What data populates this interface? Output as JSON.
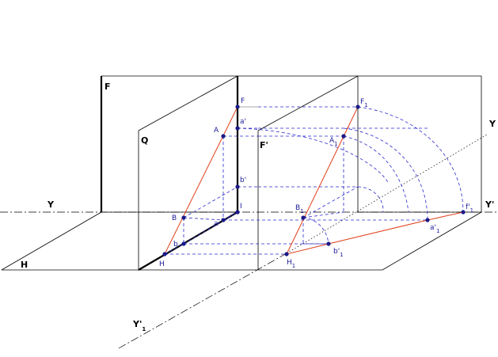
{
  "labels": {
    "F": "F",
    "Q": "Q",
    "Fp": "F'",
    "Y": "Y",
    "Yp": "Y'",
    "Y1": "Y",
    "Y1p": "Y'",
    "Y1p_sub": "1",
    "H": "H",
    "pts": {
      "F": "F",
      "A": "A",
      "a1": "a'",
      "b1": "b'",
      "B": "B",
      "b": "b",
      "a": "a",
      "I": "I",
      "Hsmall": "H",
      "F1": "F",
      "A1": "A",
      "B1": "B",
      "H1": "H",
      "b1p": "b'",
      "a1p": "a'",
      "f1": "f'"
    },
    "sub1": "1"
  },
  "colors": {
    "frame": "#000000",
    "construction": "#2a2acc",
    "edge": "#e0401a",
    "point": "#1a1a88"
  }
}
